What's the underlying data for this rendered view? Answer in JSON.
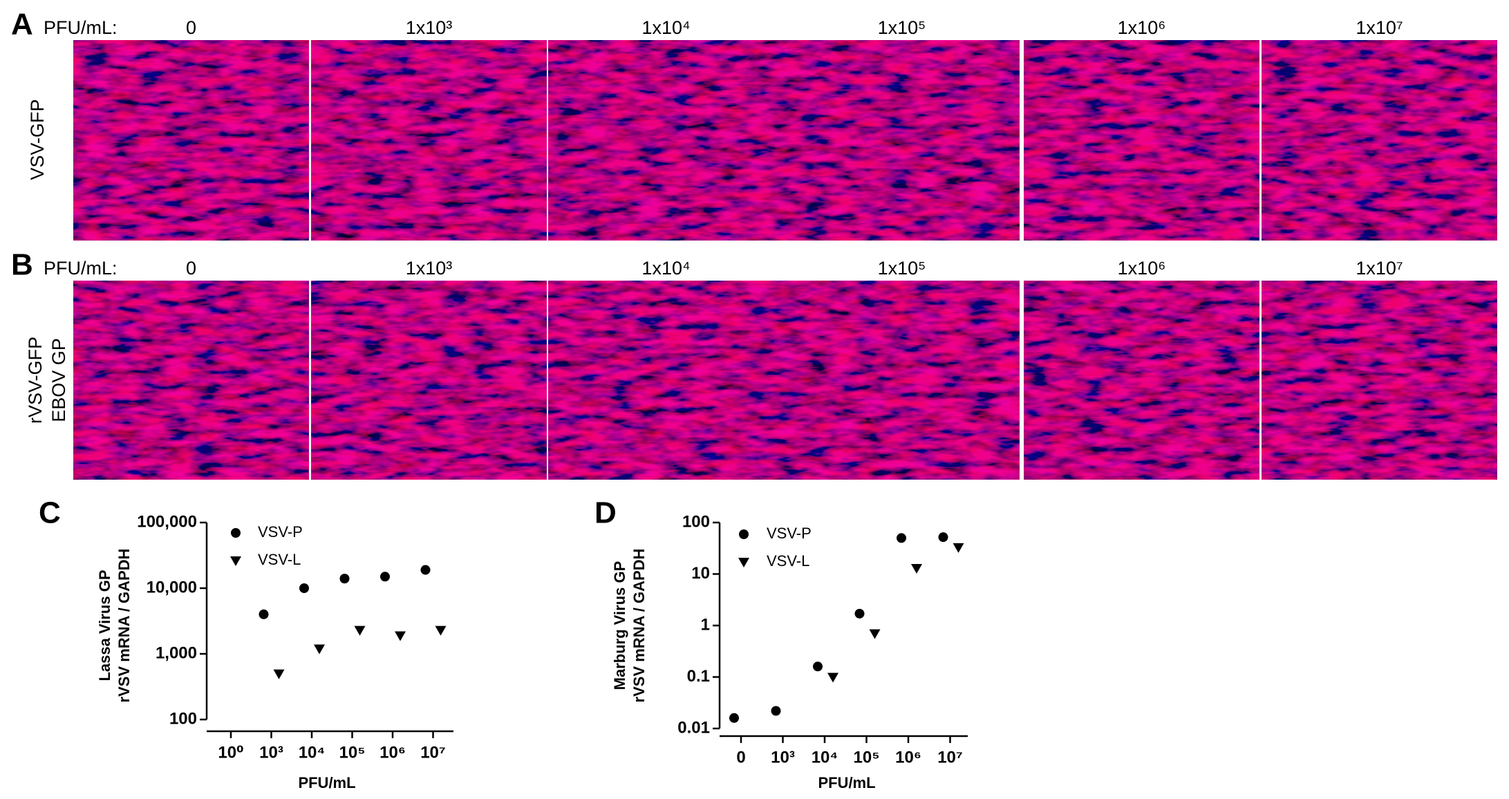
{
  "panel_a": {
    "label": "A",
    "dose_label": "PFU/mL:",
    "row_label": [
      "VSV-GFP"
    ],
    "doses": [
      "0",
      "1x10³",
      "1x10⁴",
      "1x10⁵",
      "1x10⁶",
      "1x10⁷"
    ]
  },
  "panel_b": {
    "label": "B",
    "dose_label": "PFU/mL:",
    "row_label": [
      "rVSV-GFP",
      "EBOV GP"
    ],
    "doses": [
      "0",
      "1x10³",
      "1x10⁴",
      "1x10⁵",
      "1x10⁶",
      "1x10⁷"
    ]
  },
  "chart_data": [
    {
      "type": "scatter",
      "panel": "C",
      "xlabel": "PFU/mL",
      "ylabel": [
        "Lassa Virus GP",
        "rVSV mRNA / GAPDH"
      ],
      "categories": [
        "10⁰",
        "10³",
        "10⁴",
        "10⁵",
        "10⁶",
        "10⁷"
      ],
      "series": [
        {
          "name": "VSV-P",
          "marker": "circle",
          "color": "#000000",
          "values": [
            null,
            4000,
            10000,
            14000,
            15000,
            19000
          ]
        },
        {
          "name": "VSV-L",
          "marker": "triangle-down",
          "color": "#000000",
          "values": [
            null,
            500,
            1200,
            2300,
            1900,
            2300
          ]
        }
      ],
      "log_y": true,
      "ylim": [
        100,
        100000
      ],
      "yticks": [
        100,
        {
          "value": 1000,
          "label": "1,000"
        },
        {
          "value": 10000,
          "label": "10,000"
        },
        {
          "value": 100000,
          "label": "100,000"
        }
      ],
      "legend": "upper left"
    },
    {
      "type": "scatter",
      "panel": "D",
      "xlabel": "PFU/mL",
      "ylabel": [
        "Marburg Virus GP",
        "rVSV mRNA / GAPDH"
      ],
      "categories": [
        "0",
        "10³",
        "10⁴",
        "10⁵",
        "10⁶",
        "10⁷"
      ],
      "series": [
        {
          "name": "VSV-P",
          "marker": "circle",
          "color": "#000000",
          "values": [
            0.016,
            0.022,
            0.16,
            1.7,
            50,
            52
          ]
        },
        {
          "name": "VSV-L",
          "marker": "triangle-down",
          "color": "#000000",
          "values": [
            null,
            null,
            0.1,
            0.7,
            13,
            33
          ]
        }
      ],
      "log_y": true,
      "ylim": [
        0.01,
        100
      ],
      "yticks": [
        0.01,
        0.1,
        1,
        10,
        100
      ],
      "legend": "upper left"
    }
  ]
}
